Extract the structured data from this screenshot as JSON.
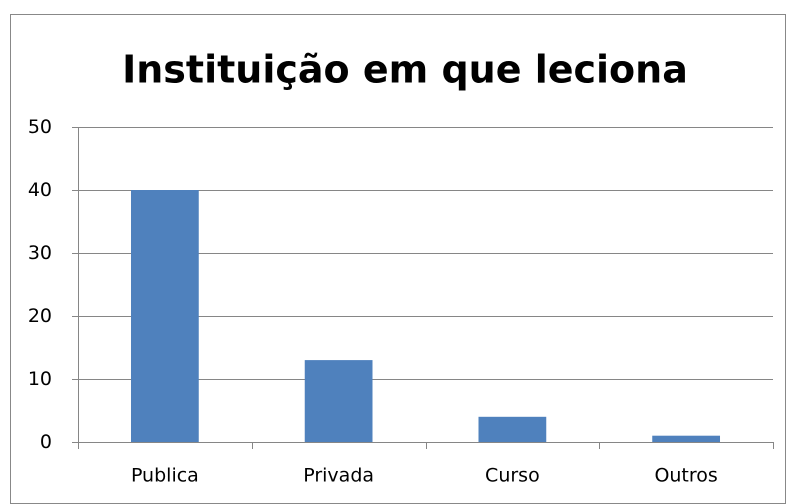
{
  "chart_data": {
    "type": "bar",
    "title": "Instituição em que leciona",
    "categories": [
      "Publica",
      "Privada",
      "Curso",
      "Outros"
    ],
    "values": [
      40,
      13,
      4,
      1
    ],
    "color": "#4f81bd",
    "ylim": [
      0,
      50
    ],
    "yticks": [
      0,
      10,
      20,
      30,
      40,
      50
    ],
    "grid": true
  }
}
